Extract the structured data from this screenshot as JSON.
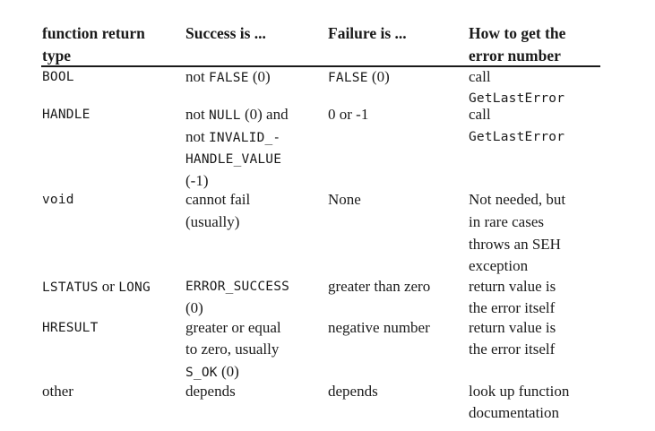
{
  "table": {
    "headers": {
      "col1_line1": "function return",
      "col1_line2": "type",
      "col2": "Success is ...",
      "col3": "Failure is ...",
      "col4_line1": "How to get the",
      "col4_line2": "error number"
    },
    "rows": [
      {
        "type": "BOOL",
        "success": [
          {
            "t": "not ",
            "m": false
          },
          {
            "t": "FALSE",
            "m": true
          },
          {
            "t": " (0)",
            "m": false
          }
        ],
        "failure": [
          {
            "t": "FALSE",
            "m": true
          },
          {
            "t": " (0)",
            "m": false
          }
        ],
        "errnum_line1": "call",
        "errnum_line2": "GetLastError"
      },
      {
        "type": "HANDLE",
        "success_line1": [
          {
            "t": "not ",
            "m": false
          },
          {
            "t": "NULL",
            "m": true
          },
          {
            "t": " (0) and",
            "m": false
          }
        ],
        "success_line2": [
          {
            "t": "not ",
            "m": false
          },
          {
            "t": "INVALID_-",
            "m": true
          }
        ],
        "success_line3": "HANDLE_VALUE",
        "success_line4": "(-1)",
        "failure": "0 or -1",
        "errnum_line1": "call",
        "errnum_line2": "GetLastError"
      },
      {
        "type": "void",
        "success_line1": "cannot fail",
        "success_line2": "(usually)",
        "failure": "None",
        "errnum_line1": "Not needed, but",
        "errnum_line2": "in rare cases",
        "errnum_line3": "throws an SEH",
        "errnum_line4": "exception"
      },
      {
        "type_part1": "LSTATUS",
        "type_part2": " or ",
        "type_part3": "LONG",
        "success_line1": "ERROR_SUCCESS",
        "success_line2": "(0)",
        "failure": "greater than zero",
        "errnum_line1": "return value is",
        "errnum_line2": "the error itself"
      },
      {
        "type": "HRESULT",
        "success_line1": "greater or equal",
        "success_line2": "to zero, usually",
        "success_line3_code": "S_OK",
        "success_line3_rest": " (0)",
        "failure": "negative number",
        "errnum_line1": "return value is",
        "errnum_line2": "the error itself"
      },
      {
        "type": "other",
        "success": "depends",
        "failure": "depends",
        "errnum_line1": "look up function",
        "errnum_line2": "documentation"
      }
    ]
  }
}
